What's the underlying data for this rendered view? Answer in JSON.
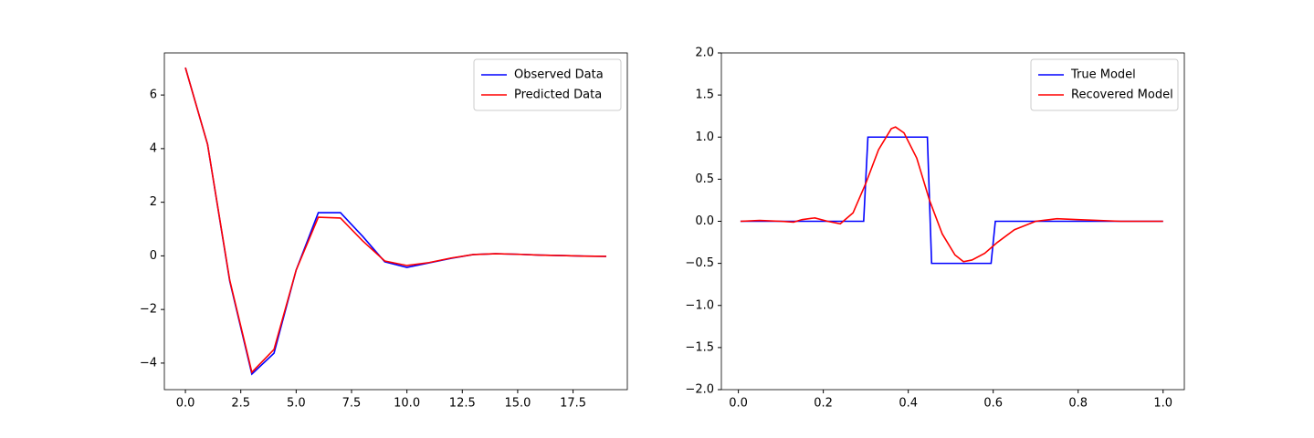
{
  "chart_data": [
    {
      "type": "line",
      "x": [
        0,
        1,
        2,
        3,
        4,
        5,
        6,
        7,
        8,
        9,
        10,
        11,
        12,
        13,
        14,
        15,
        16,
        17,
        18,
        19
      ],
      "series": [
        {
          "name": "Observed Data",
          "color": "#0000ff",
          "values": [
            7.02,
            4.16,
            -0.94,
            -4.41,
            -3.63,
            -0.53,
            1.61,
            1.61,
            0.73,
            -0.22,
            -0.43,
            -0.26,
            -0.09,
            0.05,
            0.08,
            0.06,
            0.03,
            0.01,
            -0.01,
            -0.02
          ]
        },
        {
          "name": "Predicted Data",
          "color": "#ff0000",
          "values": [
            7.02,
            4.16,
            -0.9,
            -4.34,
            -3.49,
            -0.53,
            1.44,
            1.41,
            0.56,
            -0.19,
            -0.36,
            -0.25,
            -0.08,
            0.05,
            0.08,
            0.06,
            0.03,
            0.01,
            -0.01,
            -0.02
          ]
        }
      ],
      "xlim": [
        -0.95,
        19.95
      ],
      "ylim": [
        -4.99,
        7.57
      ],
      "xticks": [
        {
          "value": 0,
          "label": "0.0"
        },
        {
          "value": 2.5,
          "label": "2.5"
        },
        {
          "value": 5,
          "label": "5.0"
        },
        {
          "value": 7.5,
          "label": "7.5"
        },
        {
          "value": 10,
          "label": "10.0"
        },
        {
          "value": 12.5,
          "label": "12.5"
        },
        {
          "value": 15,
          "label": "15.0"
        },
        {
          "value": 17.5,
          "label": "17.5"
        }
      ],
      "yticks": [
        {
          "value": -4,
          "label": "−4"
        },
        {
          "value": -2,
          "label": "−2"
        },
        0,
        2,
        4,
        6
      ],
      "legend": "upper right"
    },
    {
      "type": "line",
      "series": [
        {
          "name": "True Model",
          "color": "#0000ff",
          "x": [
            0.005,
            0.295,
            0.305,
            0.445,
            0.455,
            0.595,
            0.605,
            1.0
          ],
          "values": [
            0,
            0,
            1,
            1,
            -0.5,
            -0.5,
            0,
            0
          ]
        },
        {
          "name": "Recovered Model",
          "color": "#ff0000",
          "x": [
            0.005,
            0.05,
            0.1,
            0.13,
            0.15,
            0.18,
            0.21,
            0.24,
            0.27,
            0.3,
            0.33,
            0.36,
            0.37,
            0.39,
            0.42,
            0.45,
            0.48,
            0.51,
            0.53,
            0.55,
            0.58,
            0.61,
            0.65,
            0.7,
            0.75,
            0.8,
            0.9,
            1.0
          ],
          "values": [
            0,
            0.01,
            0,
            -0.01,
            0.02,
            0.04,
            0.0,
            -0.03,
            0.1,
            0.45,
            0.85,
            1.1,
            1.12,
            1.05,
            0.75,
            0.25,
            -0.15,
            -0.4,
            -0.48,
            -0.46,
            -0.38,
            -0.25,
            -0.1,
            0.0,
            0.03,
            0.02,
            0.0,
            0.0
          ]
        }
      ],
      "xlim": [
        -0.04,
        1.05
      ],
      "ylim": [
        -2,
        2
      ],
      "xticks": [
        {
          "value": 0,
          "label": "0.0"
        },
        {
          "value": 0.2,
          "label": "0.2"
        },
        {
          "value": 0.4,
          "label": "0.4"
        },
        {
          "value": 0.6,
          "label": "0.6"
        },
        {
          "value": 0.8,
          "label": "0.8"
        },
        {
          "value": 1,
          "label": "1.0"
        }
      ],
      "yticks": [
        {
          "value": -2,
          "label": "−2.0"
        },
        {
          "value": -1.5,
          "label": "−1.5"
        },
        {
          "value": -1,
          "label": "−1.0"
        },
        {
          "value": -0.5,
          "label": "−0.5"
        },
        {
          "value": 0,
          "label": "0.0"
        },
        {
          "value": 0.5,
          "label": "0.5"
        },
        {
          "value": 1,
          "label": "1.0"
        },
        {
          "value": 1.5,
          "label": "1.5"
        },
        {
          "value": 2,
          "label": "2.0"
        }
      ],
      "legend": "upper right"
    }
  ]
}
